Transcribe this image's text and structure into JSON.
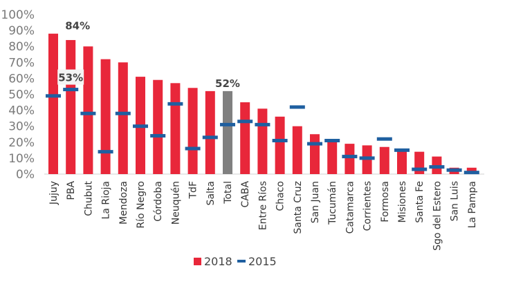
{
  "chart_data": {
    "type": "bar",
    "title": "",
    "xlabel": "",
    "ylabel": "",
    "ylim": [
      0,
      100
    ],
    "yticks": [
      "0%",
      "10%",
      "20%",
      "30%",
      "40%",
      "50%",
      "60%",
      "70%",
      "80%",
      "90%",
      "100%"
    ],
    "grid": false,
    "legend_position": "bottom",
    "categories": [
      "Jujuy",
      "PBA",
      "Chubut",
      "La Rioja",
      "Mendoza",
      "Río Negro",
      "Córdoba",
      "Neuquén",
      "TdF",
      "Salta",
      "Total",
      "CABA",
      "Entre Ríos",
      "Chaco",
      "Santa Cruz",
      "San Juan",
      "Tucumán",
      "Catamarca",
      "Corrientes",
      "Formosa",
      "Misiones",
      "Santa Fe",
      "Sgo del Estero",
      "San Luis",
      "La Pampa"
    ],
    "series": [
      {
        "name": "2018",
        "type": "bar",
        "color": "#e8273a",
        "highlight_color": "#808080",
        "highlight_category": "Total",
        "values": [
          88,
          84,
          80,
          72,
          70,
          61,
          59,
          57,
          54,
          52,
          52,
          45,
          41,
          36,
          30,
          25,
          21,
          19,
          18,
          17,
          15,
          14,
          11,
          4,
          4
        ]
      },
      {
        "name": "2015",
        "type": "marker",
        "color": "#1f5fa0",
        "values": [
          49,
          53,
          38,
          14,
          38,
          30,
          24,
          44,
          16,
          23,
          31,
          33,
          31,
          21,
          42,
          19,
          21,
          11,
          10,
          22,
          15,
          3,
          4.5,
          2.5,
          1
        ]
      }
    ],
    "annotations": [
      {
        "category": "PBA",
        "series": "2018",
        "text": "84%"
      },
      {
        "category": "PBA",
        "series": "2015",
        "text": "53%"
      },
      {
        "category": "Total",
        "series": "2018",
        "text": "52%"
      }
    ]
  }
}
